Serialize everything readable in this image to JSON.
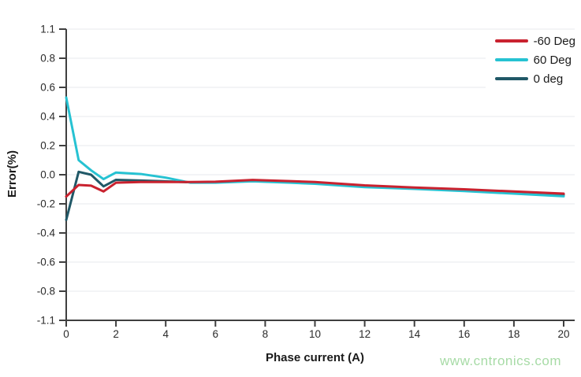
{
  "chart_data": {
    "type": "line",
    "title": "",
    "xlabel": "Phase current (A)",
    "ylabel": "Error(%)",
    "xlim": [
      0,
      20
    ],
    "x_ticks": [
      0,
      2,
      4,
      6,
      8,
      10,
      12,
      14,
      16,
      18,
      20
    ],
    "x_tick_labels": [
      "0",
      "2",
      "4",
      "6",
      "8",
      "10",
      "12",
      "14",
      "16",
      "18",
      "20"
    ],
    "y_ticks": [
      1.1,
      0.8,
      0.6,
      0.4,
      0.2,
      0,
      -0.2,
      -0.4,
      -0.6,
      -0.8,
      -1.1
    ],
    "y_tick_labels": [
      "1.1",
      "0.8",
      "0.6",
      "0.4",
      "0.2",
      "0.0",
      "-0.2",
      "-0.4",
      "-0.6",
      "-0.8",
      "-1.1"
    ],
    "grid": "horizontal",
    "grid_color": "#e7e9ed",
    "axis_color": "#3f3f3f",
    "legend_position": "top-right",
    "x": [
      0,
      0.5,
      1,
      1.5,
      2,
      3,
      4,
      5,
      6,
      7.5,
      9,
      10,
      12,
      14,
      16,
      18,
      20
    ],
    "series": [
      {
        "name": "-60 Deg",
        "color": "#c9222f",
        "values": [
          -0.15,
          -0.07,
          -0.075,
          -0.115,
          -0.055,
          -0.05,
          -0.05,
          -0.05,
          -0.048,
          -0.036,
          -0.044,
          -0.05,
          -0.073,
          -0.088,
          -0.1,
          -0.115,
          -0.13
        ]
      },
      {
        "name": "60 Deg",
        "color": "#26c2d2",
        "values": [
          0.53,
          0.1,
          0.03,
          -0.03,
          0.015,
          0.005,
          -0.02,
          -0.055,
          -0.055,
          -0.045,
          -0.055,
          -0.062,
          -0.085,
          -0.097,
          -0.112,
          -0.13,
          -0.148
        ]
      },
      {
        "name": "0 deg",
        "color": "#205867",
        "values": [
          -0.31,
          0.02,
          0,
          -0.08,
          -0.035,
          -0.04,
          -0.045,
          -0.052,
          -0.05,
          -0.04,
          -0.048,
          -0.055,
          -0.078,
          -0.092,
          -0.105,
          -0.122,
          -0.138
        ]
      }
    ]
  },
  "watermark": {
    "text": "www.cntronics.com",
    "color": "#a7dba6"
  }
}
